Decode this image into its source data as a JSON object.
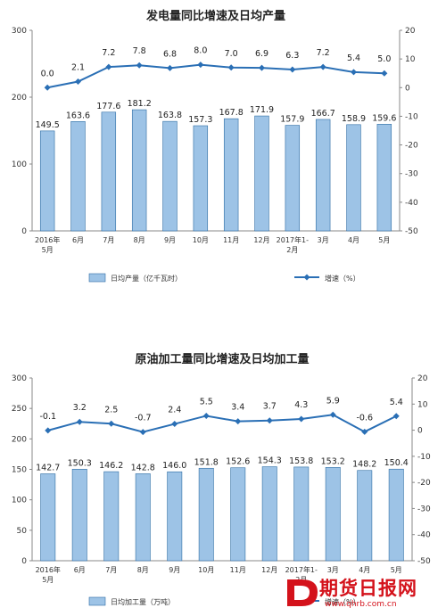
{
  "chart_data": [
    {
      "type": "bar+line",
      "title": "发电量同比增速及日均产量",
      "categories": [
        "2016年\n5月",
        "6月",
        "7月",
        "8月",
        "9月",
        "10月",
        "11月",
        "12月",
        "2017年1-\n2月",
        "3月",
        "4月",
        "5月"
      ],
      "series": [
        {
          "name": "日均产量（亿千瓦时）",
          "type": "bar",
          "axis": "left",
          "values": [
            149.5,
            163.6,
            177.6,
            181.2,
            163.8,
            157.3,
            167.8,
            171.9,
            157.9,
            166.7,
            158.9,
            159.6
          ]
        },
        {
          "name": "增速（%）",
          "type": "line",
          "axis": "right",
          "values": [
            0.0,
            2.1,
            7.2,
            7.8,
            6.8,
            8.0,
            7.0,
            6.9,
            6.3,
            7.2,
            5.4,
            5.0
          ]
        }
      ],
      "ylim_left": [
        0,
        300
      ],
      "yticks_left": [
        0,
        100,
        200,
        300
      ],
      "ylim_right": [
        -50,
        20
      ],
      "yticks_right": [
        -50,
        -40,
        -30,
        -20,
        -10,
        0,
        10,
        20
      ],
      "legend": "bottom",
      "colors": {
        "bar": "#9dc3e6",
        "bar_edge": "#2e6da4",
        "line": "#2a6fb5"
      }
    },
    {
      "type": "bar+line",
      "title": "原油加工量同比增速及日均加工量",
      "categories": [
        "2016年\n5月",
        "6月",
        "7月",
        "8月",
        "9月",
        "10月",
        "11月",
        "12月",
        "2017年1-\n2月",
        "3月",
        "4月",
        "5月"
      ],
      "series": [
        {
          "name": "日均加工量（万吨）",
          "type": "bar",
          "axis": "left",
          "values": [
            142.7,
            150.3,
            146.2,
            142.8,
            146.0,
            151.8,
            152.6,
            154.3,
            153.8,
            153.2,
            148.2,
            150.4
          ]
        },
        {
          "name": "增速（%）",
          "type": "line",
          "axis": "right",
          "values": [
            -0.1,
            3.2,
            2.5,
            -0.7,
            2.4,
            5.5,
            3.4,
            3.7,
            4.3,
            5.9,
            -0.6,
            5.4
          ]
        }
      ],
      "ylim_left": [
        0,
        300
      ],
      "yticks_left": [
        0,
        50,
        100,
        150,
        200,
        250,
        300
      ],
      "ylim_right": [
        -50,
        20
      ],
      "yticks_right": [
        -50,
        -40,
        -30,
        -20,
        -10,
        0,
        10,
        20
      ],
      "legend": "bottom",
      "colors": {
        "bar": "#9dc3e6",
        "bar_edge": "#2e6da4",
        "line": "#2a6fb5"
      }
    }
  ],
  "watermark": {
    "text": "期货日报网",
    "url": "www.qhrb.com.cn",
    "logo_letter": "D"
  }
}
